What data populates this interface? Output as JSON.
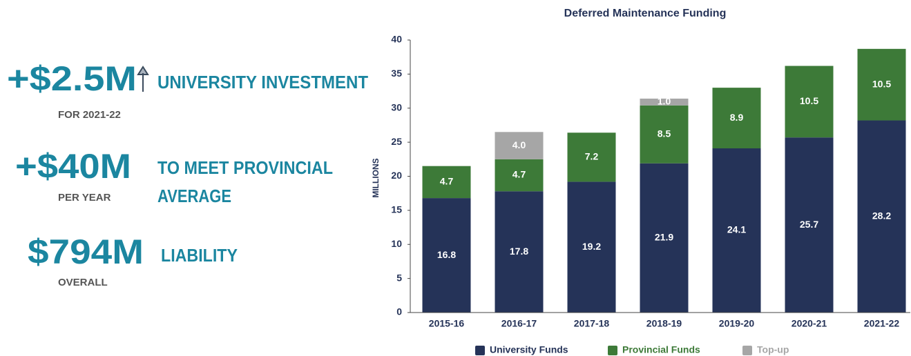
{
  "stats": [
    {
      "value": "+$2.5M",
      "label": [
        "UNIVERSITY INVESTMENT"
      ],
      "sub": "FOR 2021-22"
    },
    {
      "value": "+$40M",
      "label": [
        "TO MEET PROVINCIAL",
        "AVERAGE"
      ],
      "sub": "PER YEAR"
    },
    {
      "value": "$794M",
      "label": [
        "LIABILITY"
      ],
      "sub": "OVERALL"
    }
  ],
  "chart_data": {
    "type": "bar",
    "stacked": true,
    "title": "Deferred Maintenance Funding",
    "ylabel": "MILLIONS",
    "categories": [
      "2015-16",
      "2016-17",
      "2017-18",
      "2018-19",
      "2019-20",
      "2020-21",
      "2021-22"
    ],
    "series": [
      {
        "name": "University Funds",
        "color": "#253358",
        "values": [
          16.8,
          17.8,
          19.2,
          21.9,
          24.1,
          25.7,
          28.2
        ]
      },
      {
        "name": "Provincial Funds",
        "color": "#3d7a38",
        "values": [
          4.7,
          4.7,
          7.2,
          8.5,
          8.9,
          10.5,
          10.5
        ]
      },
      {
        "name": "Top-up",
        "color": "#a6a6a6",
        "values": [
          null,
          4.0,
          null,
          1.0,
          null,
          null,
          null
        ],
        "value_labels": [
          null,
          "4.0",
          null,
          "1.0",
          null,
          null,
          null
        ]
      }
    ],
    "ylim": [
      0,
      40
    ],
    "yticks": [
      0,
      5,
      10,
      15,
      20,
      25,
      30,
      35,
      40
    ],
    "grid": false,
    "legend": "bottom"
  }
}
